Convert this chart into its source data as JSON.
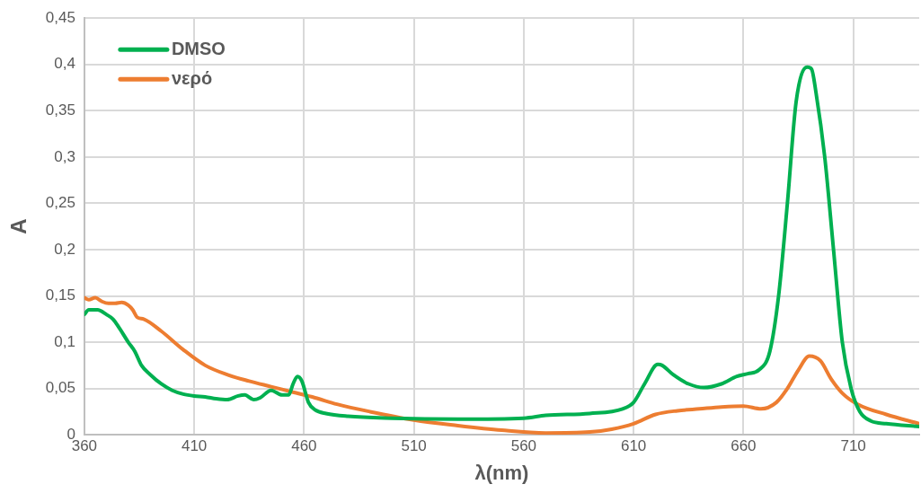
{
  "chart_data": {
    "type": "line",
    "xlabel": "λ(nm)",
    "ylabel": "A",
    "xlim": [
      360,
      740
    ],
    "xticks": [
      360,
      410,
      460,
      510,
      560,
      610,
      660,
      710
    ],
    "ylim": [
      0,
      0.45
    ],
    "yticks": [
      0,
      {
        "value": 0.05,
        "label": "0,05"
      },
      {
        "value": 0.1,
        "label": "0,1"
      },
      {
        "value": 0.15,
        "label": "0,15"
      },
      {
        "value": 0.2,
        "label": "0,2"
      },
      {
        "value": 0.25,
        "label": "0,25"
      },
      {
        "value": 0.3,
        "label": "0,3"
      },
      {
        "value": 0.35,
        "label": "0,35"
      },
      {
        "value": 0.4,
        "label": "0,4"
      },
      {
        "value": 0.45,
        "label": "0,45"
      }
    ],
    "grid": true,
    "legend": "top left",
    "marker": "none",
    "line_style": "solid",
    "series": [
      {
        "name": "DMSO",
        "color": "#00b050",
        "x": [
          360,
          362,
          366,
          370,
          373,
          376,
          380,
          383,
          386,
          390,
          395,
          400,
          405,
          410,
          415,
          420,
          425,
          430,
          433,
          437,
          440,
          445,
          450,
          453,
          455,
          457,
          459,
          462,
          465,
          470,
          480,
          500,
          530,
          560,
          570,
          590,
          605,
          610,
          615,
          621,
          623,
          628,
          635,
          642,
          650,
          657,
          662,
          667,
          672,
          676,
          680,
          684,
          689,
          691,
          693,
          697,
          701,
          705,
          709,
          713,
          718,
          725,
          740
        ],
        "values": [
          0.13,
          0.135,
          0.135,
          0.13,
          0.125,
          0.115,
          0.1,
          0.09,
          0.075,
          0.065,
          0.055,
          0.048,
          0.044,
          0.042,
          0.041,
          0.039,
          0.038,
          0.042,
          0.043,
          0.038,
          0.04,
          0.048,
          0.043,
          0.043,
          0.055,
          0.063,
          0.058,
          0.035,
          0.027,
          0.023,
          0.02,
          0.018,
          0.017,
          0.018,
          0.021,
          0.023,
          0.028,
          0.035,
          0.055,
          0.076,
          0.075,
          0.065,
          0.055,
          0.051,
          0.055,
          0.063,
          0.066,
          0.07,
          0.09,
          0.15,
          0.25,
          0.36,
          0.397,
          0.395,
          0.37,
          0.3,
          0.2,
          0.1,
          0.05,
          0.025,
          0.015,
          0.012,
          0.009
        ]
      },
      {
        "name": "νερό",
        "color": "#ed7d31",
        "x": [
          360,
          362,
          365,
          368,
          371,
          374,
          377,
          380,
          382,
          384,
          387,
          395,
          405,
          415,
          425,
          435,
          445,
          455,
          465,
          475,
          490,
          510,
          530,
          550,
          570,
          590,
          600,
          610,
          620,
          630,
          640,
          650,
          660,
          668,
          675,
          680,
          685,
          690,
          695,
          700,
          705,
          712,
          725,
          740
        ],
        "values": [
          0.148,
          0.146,
          0.148,
          0.144,
          0.142,
          0.142,
          0.143,
          0.14,
          0.135,
          0.127,
          0.125,
          0.112,
          0.092,
          0.075,
          0.065,
          0.058,
          0.052,
          0.046,
          0.04,
          0.033,
          0.025,
          0.016,
          0.01,
          0.005,
          0.002,
          0.003,
          0.006,
          0.012,
          0.022,
          0.026,
          0.028,
          0.03,
          0.031,
          0.028,
          0.035,
          0.05,
          0.07,
          0.085,
          0.08,
          0.06,
          0.045,
          0.033,
          0.022,
          0.012
        ]
      }
    ]
  }
}
